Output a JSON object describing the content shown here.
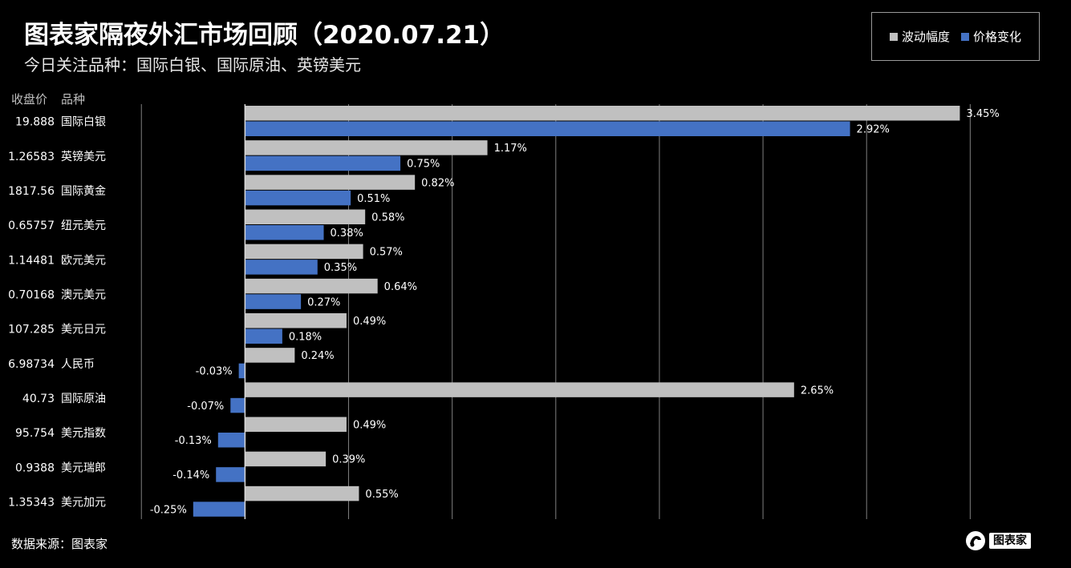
{
  "header": {
    "title": "图表家隔夜外汇市场回顾（2020.07.21）",
    "subtitle": "今日关注品种：国际白银、国际原油、英镑美元"
  },
  "columns": {
    "price": "收盘价",
    "name": "品种"
  },
  "footer": {
    "source": "数据来源：图表家",
    "brand": "图表家"
  },
  "colors": {
    "volatility": "#c0c0c0",
    "change": "#4472c4",
    "grid": "#7f7f7f"
  },
  "chart_data": {
    "type": "bar",
    "orientation": "horizontal",
    "title": "图表家隔夜外汇市场回顾（2020.07.21）",
    "subtitle": "今日关注品种：国际白银、国际原油、英镑美元",
    "legend_position": "top-right",
    "grid": true,
    "xlim": [
      -0.0059,
      0.0382
    ],
    "categories": [
      "国际白银",
      "英镑美元",
      "国际黄金",
      "纽元美元",
      "欧元美元",
      "澳元美元",
      "美元日元",
      "人民币",
      "国际原油",
      "美元指数",
      "美元瑞郎",
      "美元加元"
    ],
    "close_prices": [
      "19.888",
      "1.26583",
      "1817.56",
      "0.65757",
      "1.14481",
      "0.70168",
      "107.285",
      "6.98734",
      "40.73",
      "95.754",
      "0.9388",
      "1.35343"
    ],
    "series": [
      {
        "name": "波动幅度",
        "values": [
          0.0345,
          0.0117,
          0.0082,
          0.0058,
          0.0057,
          0.0064,
          0.0049,
          0.0024,
          0.0265,
          0.0049,
          0.0039,
          0.0055
        ],
        "labels": [
          "3.45%",
          "1.17%",
          "0.82%",
          "0.58%",
          "0.57%",
          "0.64%",
          "0.49%",
          "0.24%",
          "2.65%",
          "0.49%",
          "0.39%",
          "0.55%"
        ]
      },
      {
        "name": "价格变化",
        "values": [
          0.0292,
          0.0075,
          0.0051,
          0.0038,
          0.0035,
          0.0027,
          0.0018,
          -0.0003,
          -0.0007,
          -0.0013,
          -0.0014,
          -0.0025
        ],
        "labels": [
          "2.92%",
          "0.75%",
          "0.51%",
          "0.38%",
          "0.35%",
          "0.27%",
          "0.18%",
          "-0.03%",
          "-0.07%",
          "-0.13%",
          "-0.14%",
          "-0.25%"
        ]
      }
    ]
  }
}
